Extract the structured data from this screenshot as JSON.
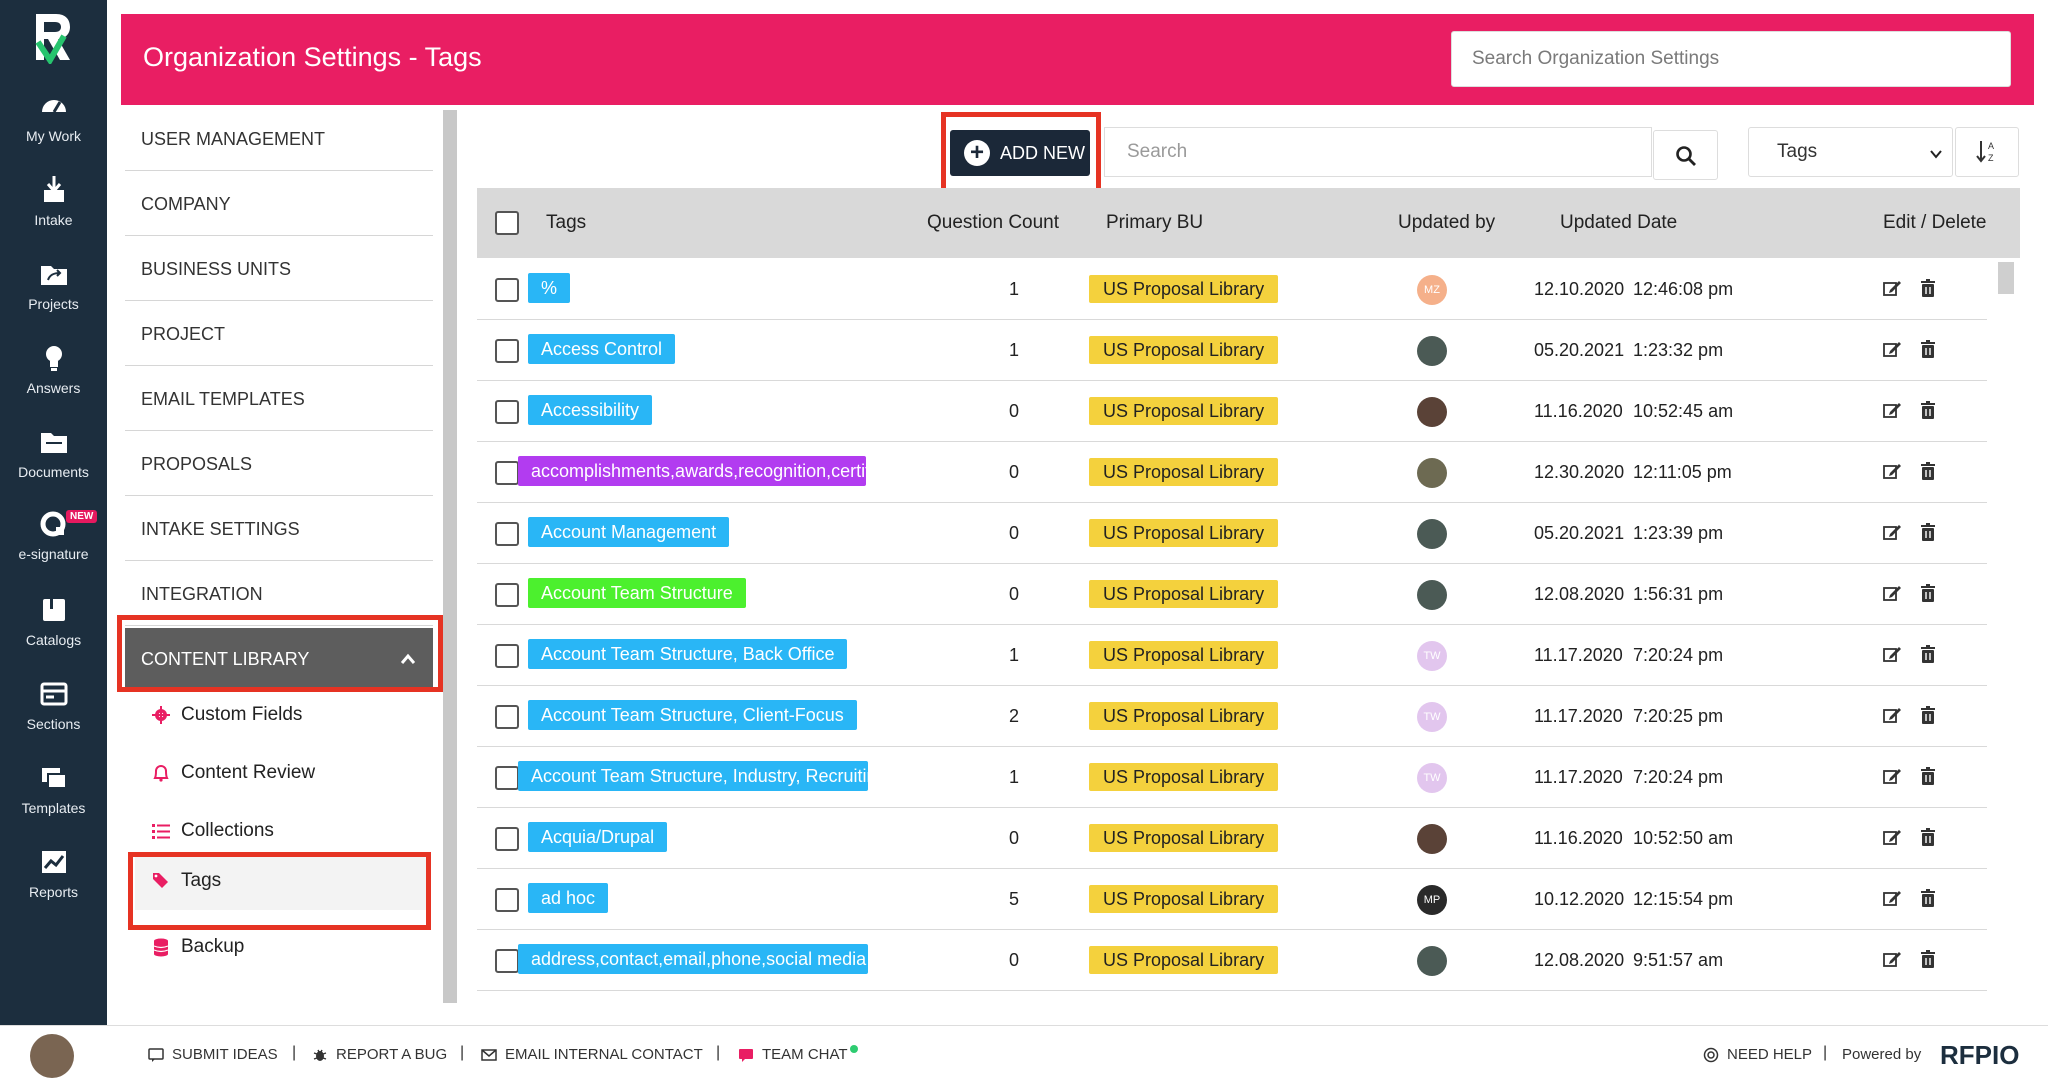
{
  "nav": [
    {
      "label": "My Work",
      "icon": "dashboard-icon"
    },
    {
      "label": "Intake",
      "icon": "download-icon"
    },
    {
      "label": "Projects",
      "icon": "folder-share-icon"
    },
    {
      "label": "Answers",
      "icon": "lightbulb-icon"
    },
    {
      "label": "Documents",
      "icon": "folder-icon"
    },
    {
      "label": "e-signature",
      "icon": "esignature-icon",
      "badge": "NEW"
    },
    {
      "label": "Catalogs",
      "icon": "book-icon"
    },
    {
      "label": "Sections",
      "icon": "sections-icon"
    },
    {
      "label": "Templates",
      "icon": "templates-icon"
    },
    {
      "label": "Reports",
      "icon": "chart-icon"
    }
  ],
  "header": {
    "title": "Organization Settings - Tags",
    "search_placeholder": "Search Organization Settings"
  },
  "menu": [
    "USER MANAGEMENT",
    "COMPANY",
    "BUSINESS UNITS",
    "PROJECT",
    "EMAIL TEMPLATES",
    "PROPOSALS",
    "INTAKE SETTINGS",
    "INTEGRATION",
    "CONTENT LIBRARY"
  ],
  "submenu": [
    "Custom Fields",
    "Content Review",
    "Collections",
    "Tags",
    "Backup"
  ],
  "toolbar": {
    "add_label": "ADD NEW",
    "search_placeholder": "Search",
    "type_value": "Tags"
  },
  "columns": {
    "tags": "Tags",
    "question_count": "Question Count",
    "primary_bu": "Primary BU",
    "updated_by": "Updated by",
    "updated_date": "Updated Date",
    "edit_delete": "Edit / Delete"
  },
  "rows": [
    {
      "tag": "%",
      "color": "#29b6f6",
      "count": "1",
      "bu": "US Proposal Library",
      "user": "MZ",
      "avatar_color": "#f5b08a",
      "date": "12.10.2020",
      "time": "12:46:08 pm"
    },
    {
      "tag": "Access Control",
      "color": "#29b6f6",
      "count": "1",
      "bu": "US Proposal Library",
      "user": "",
      "avatar_color": "#4b5a55",
      "date": "05.20.2021",
      "time": "1:23:32 pm"
    },
    {
      "tag": "Accessibility",
      "color": "#29b6f6",
      "count": "0",
      "bu": "US Proposal Library",
      "user": "",
      "avatar_color": "#5a4237",
      "date": "11.16.2020",
      "time": "10:52:45 am"
    },
    {
      "tag": "accomplishments,awards,recognition,certifications",
      "color": "#b23cf0",
      "count": "0",
      "bu": "US Proposal Library",
      "user": "",
      "avatar_color": "#6d6a52",
      "date": "12.30.2020",
      "time": "12:11:05 pm"
    },
    {
      "tag": "Account Management",
      "color": "#29b6f6",
      "count": "0",
      "bu": "US Proposal Library",
      "user": "",
      "avatar_color": "#4b5a55",
      "date": "05.20.2021",
      "time": "1:23:39 pm"
    },
    {
      "tag": "Account Team Structure",
      "color": "#4cf02e",
      "count": "0",
      "bu": "US Proposal Library",
      "user": "",
      "avatar_color": "#4b5a55",
      "date": "12.08.2020",
      "time": "1:56:31 pm"
    },
    {
      "tag": "Account Team Structure, Back Office",
      "color": "#29b6f6",
      "count": "1",
      "bu": "US Proposal Library",
      "user": "TW",
      "avatar_color": "#e2c6ee",
      "date": "11.17.2020",
      "time": "7:20:24 pm"
    },
    {
      "tag": "Account Team Structure, Client-Focus",
      "color": "#29b6f6",
      "count": "2",
      "bu": "US Proposal Library",
      "user": "TW",
      "avatar_color": "#e2c6ee",
      "date": "11.17.2020",
      "time": "7:20:25 pm"
    },
    {
      "tag": "Account Team Structure, Industry, Recruiting",
      "color": "#29b6f6",
      "count": "1",
      "bu": "US Proposal Library",
      "user": "TW",
      "avatar_color": "#e2c6ee",
      "date": "11.17.2020",
      "time": "7:20:24 pm"
    },
    {
      "tag": "Acquia/Drupal",
      "color": "#29b6f6",
      "count": "0",
      "bu": "US Proposal Library",
      "user": "",
      "avatar_color": "#5a4237",
      "date": "11.16.2020",
      "time": "10:52:50 am"
    },
    {
      "tag": "ad hoc",
      "color": "#29b6f6",
      "count": "5",
      "bu": "US Proposal Library",
      "user": "MP",
      "avatar_color": "#2a2a2a",
      "date": "10.12.2020",
      "time": "12:15:54 pm"
    },
    {
      "tag": "address,contact,email,phone,social media",
      "color": "#29b6f6",
      "count": "0",
      "bu": "US Proposal Library",
      "user": "",
      "avatar_color": "#4b5a55",
      "date": "12.08.2020",
      "time": "9:51:57 am"
    }
  ],
  "footer": {
    "submit_ideas": "SUBMIT IDEAS",
    "report_bug": "REPORT A BUG",
    "email_contact": "EMAIL INTERNAL CONTACT",
    "team_chat": "TEAM CHAT",
    "need_help": "NEED HELP",
    "powered_by": "Powered by",
    "brand": "RFPIO",
    "sep": "|"
  },
  "colors": {
    "header": "#e91e63",
    "sidebar": "#1c2e3e",
    "bu_pill": "#f4d13d",
    "highlight": "#e63323"
  }
}
